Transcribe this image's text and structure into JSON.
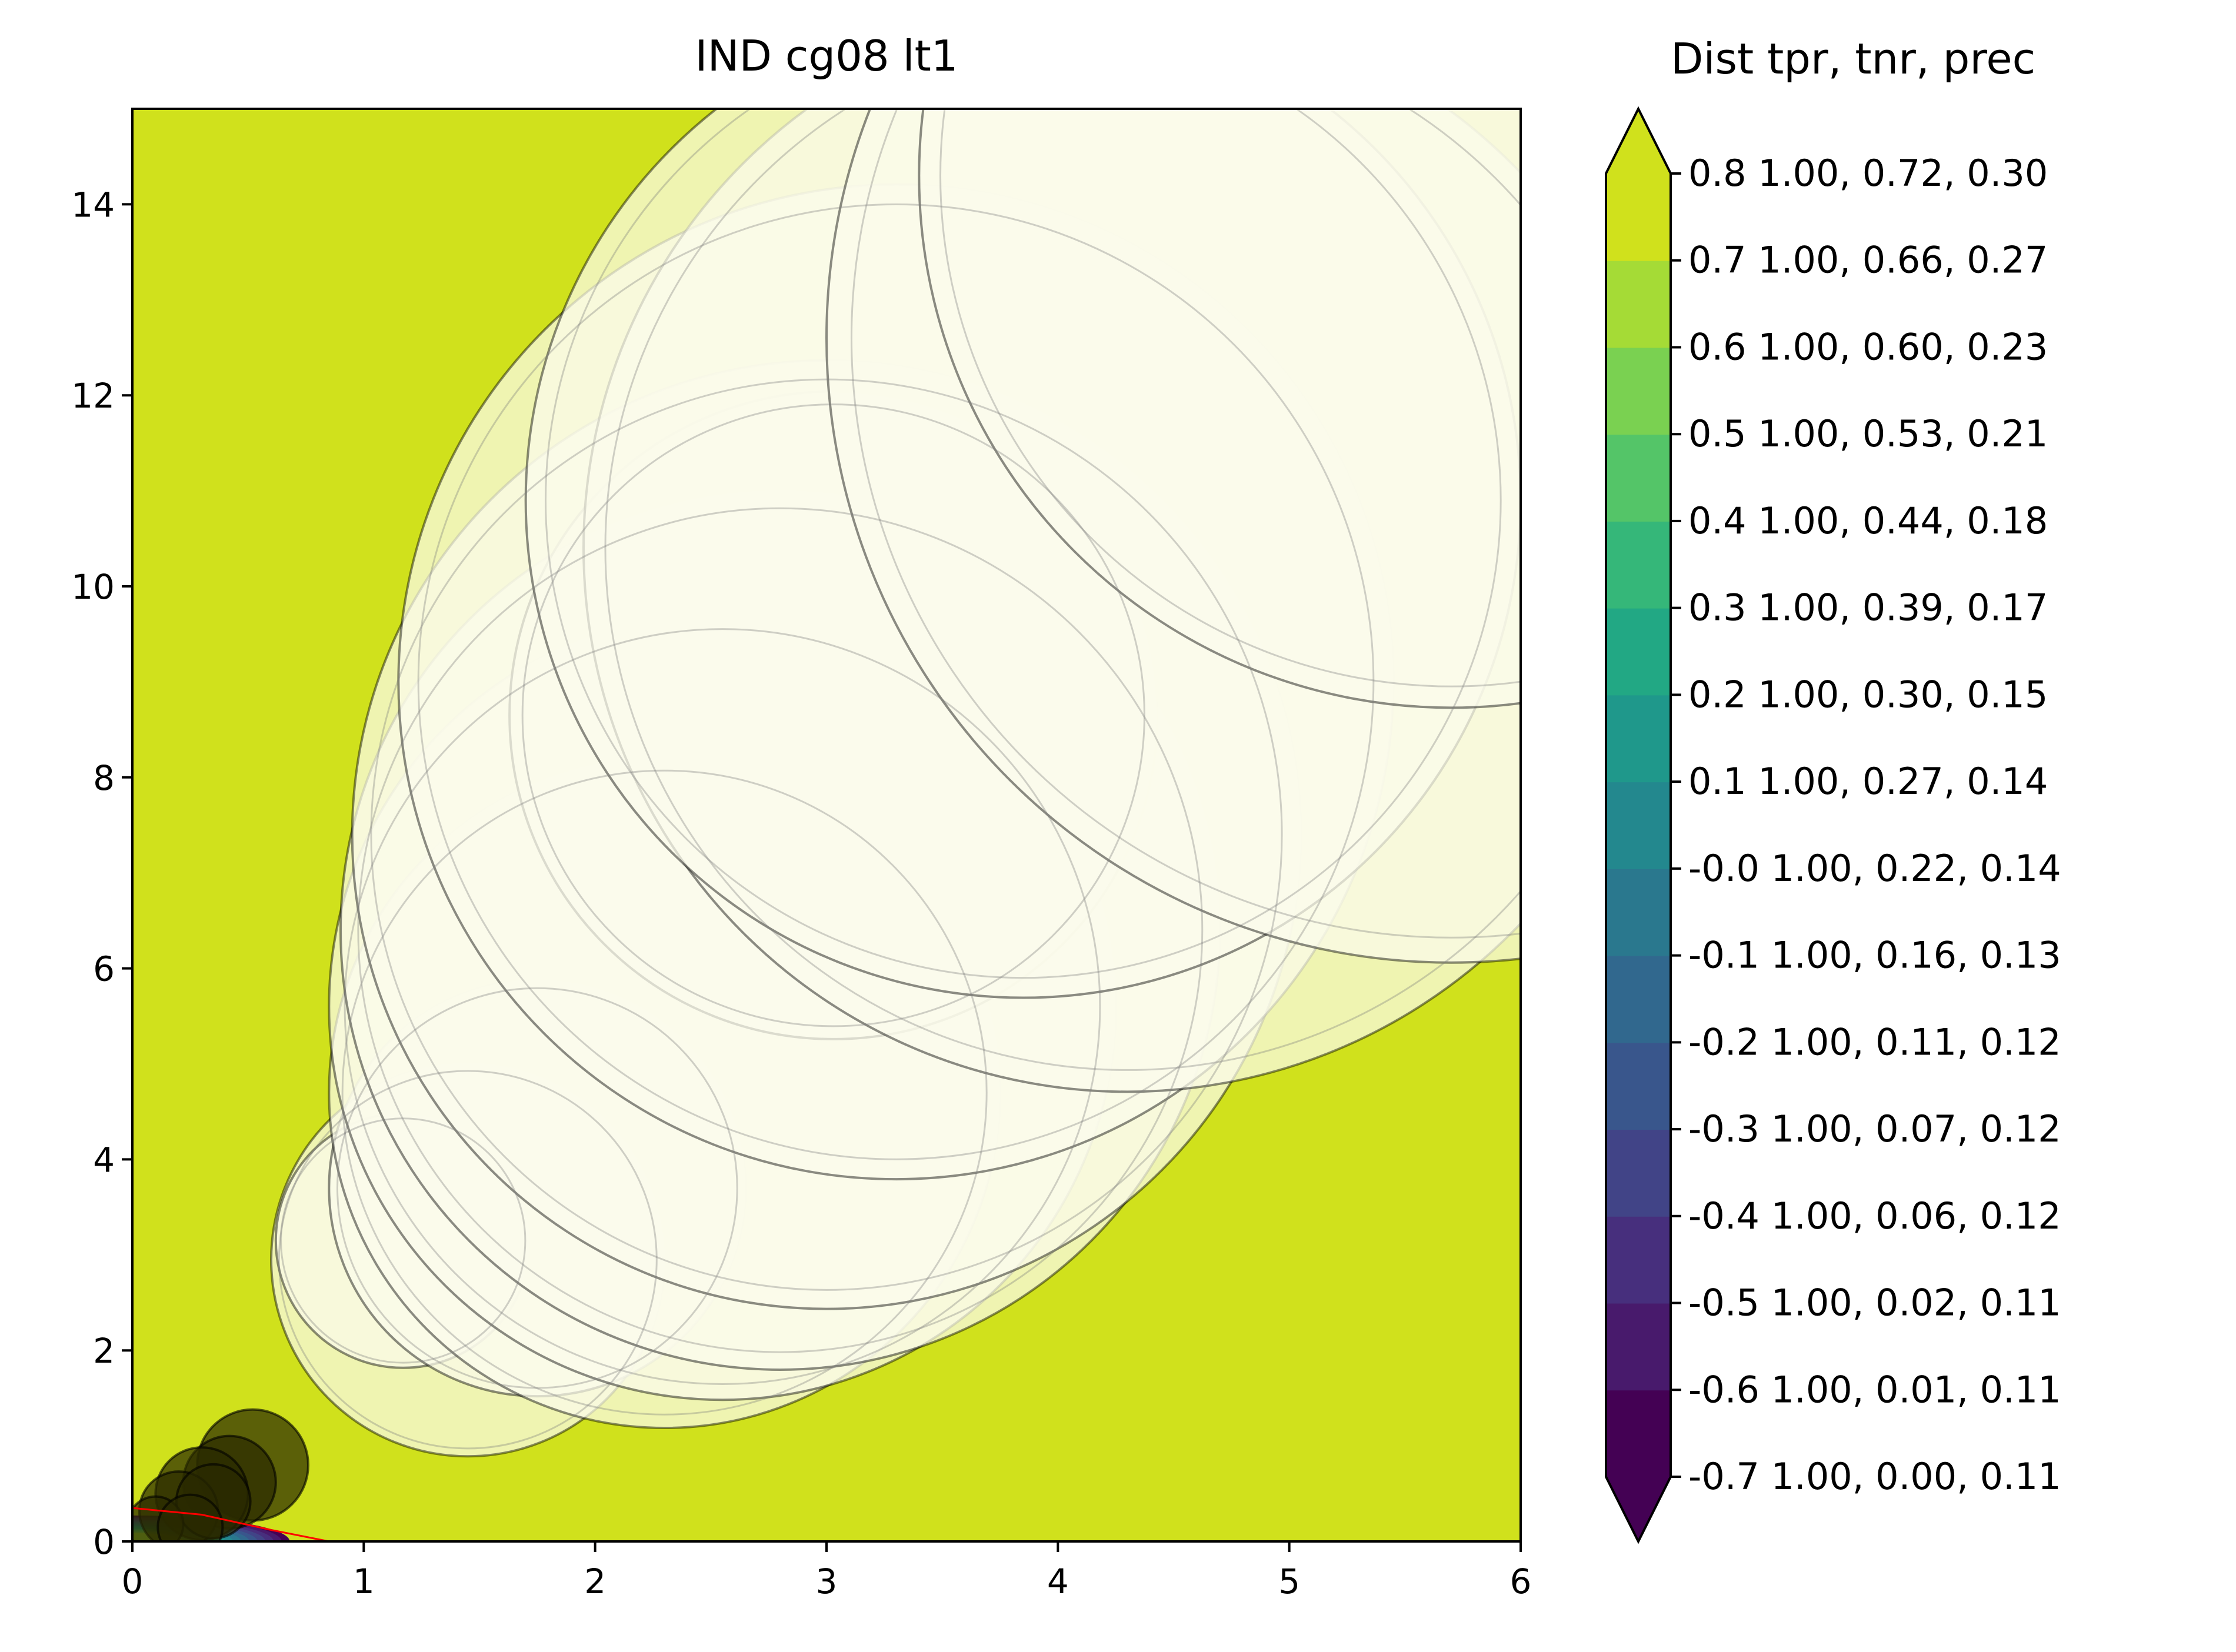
{
  "chart_data": {
    "type": "scatter",
    "title": "IND cg08 lt1",
    "xlabel": "",
    "ylabel": "",
    "xlim": [
      0,
      6
    ],
    "ylim": [
      0,
      15
    ],
    "x_ticks": [
      "0",
      "1",
      "2",
      "3",
      "4",
      "5",
      "6"
    ],
    "y_ticks": [
      "0",
      "2",
      "4",
      "6",
      "8",
      "10",
      "12",
      "14"
    ],
    "background_color": "#d0e11c",
    "bubbles_white": [
      {
        "x": 1.45,
        "y": 2.95,
        "r": 0.85
      },
      {
        "x": 1.17,
        "y": 3.15,
        "r": 0.55
      },
      {
        "x": 1.75,
        "y": 3.7,
        "r": 0.9
      },
      {
        "x": 2.3,
        "y": 4.7,
        "r": 1.45
      },
      {
        "x": 2.55,
        "y": 5.6,
        "r": 1.7
      },
      {
        "x": 2.8,
        "y": 6.4,
        "r": 1.9
      },
      {
        "x": 3.0,
        "y": 7.4,
        "r": 2.05
      },
      {
        "x": 3.03,
        "y": 8.65,
        "r": 1.4
      },
      {
        "x": 3.3,
        "y": 9.0,
        "r": 2.15
      },
      {
        "x": 4.3,
        "y": 10.4,
        "r": 2.35
      },
      {
        "x": 3.85,
        "y": 10.9,
        "r": 2.15
      },
      {
        "x": 5.7,
        "y": 12.6,
        "r": 2.7
      },
      {
        "x": 5.7,
        "y": 14.3,
        "r": 2.3
      }
    ],
    "bubbles_dark": [
      {
        "x": 0.52,
        "y": 0.8,
        "r": 0.24
      },
      {
        "x": 0.42,
        "y": 0.62,
        "r": 0.2
      },
      {
        "x": 0.3,
        "y": 0.5,
        "r": 0.2
      },
      {
        "x": 0.2,
        "y": 0.32,
        "r": 0.17
      },
      {
        "x": 0.35,
        "y": 0.42,
        "r": 0.16
      },
      {
        "x": 0.1,
        "y": 0.18,
        "r": 0.12
      },
      {
        "x": 0.25,
        "y": 0.15,
        "r": 0.14
      }
    ],
    "red_line": {
      "x": [
        0,
        0.3,
        0.6,
        0.85
      ],
      "y": [
        0.35,
        0.28,
        0.12,
        0.0
      ]
    },
    "colorbar": {
      "header": "Dist  tpr, tnr, prec",
      "extend": "both",
      "colors": [
        "#440154",
        "#481a6c",
        "#472f7d",
        "#414487",
        "#39568c",
        "#31688e",
        "#2a788e",
        "#23888e",
        "#1f988b",
        "#22a884",
        "#35b779",
        "#54c568",
        "#7ad151",
        "#a5db36",
        "#d0e11c"
      ],
      "labels": [
        "-0.7 1.00, 0.00, 0.11",
        "-0.6 1.00, 0.01, 0.11",
        "-0.5 1.00, 0.02, 0.11",
        "-0.4 1.00, 0.06, 0.12",
        "-0.3 1.00, 0.07, 0.12",
        "-0.2 1.00, 0.11, 0.12",
        "-0.1 1.00, 0.16, 0.13",
        "-0.0 1.00, 0.22, 0.14",
        "0.1 1.00, 0.27, 0.14",
        "0.2 1.00, 0.30, 0.15",
        "0.3 1.00, 0.39, 0.17",
        "0.4 1.00, 0.44, 0.18",
        "0.5 1.00, 0.53, 0.21",
        "0.6 1.00, 0.60, 0.23",
        "0.7 1.00, 0.66, 0.27",
        "0.8 1.00, 0.72, 0.30"
      ]
    }
  }
}
